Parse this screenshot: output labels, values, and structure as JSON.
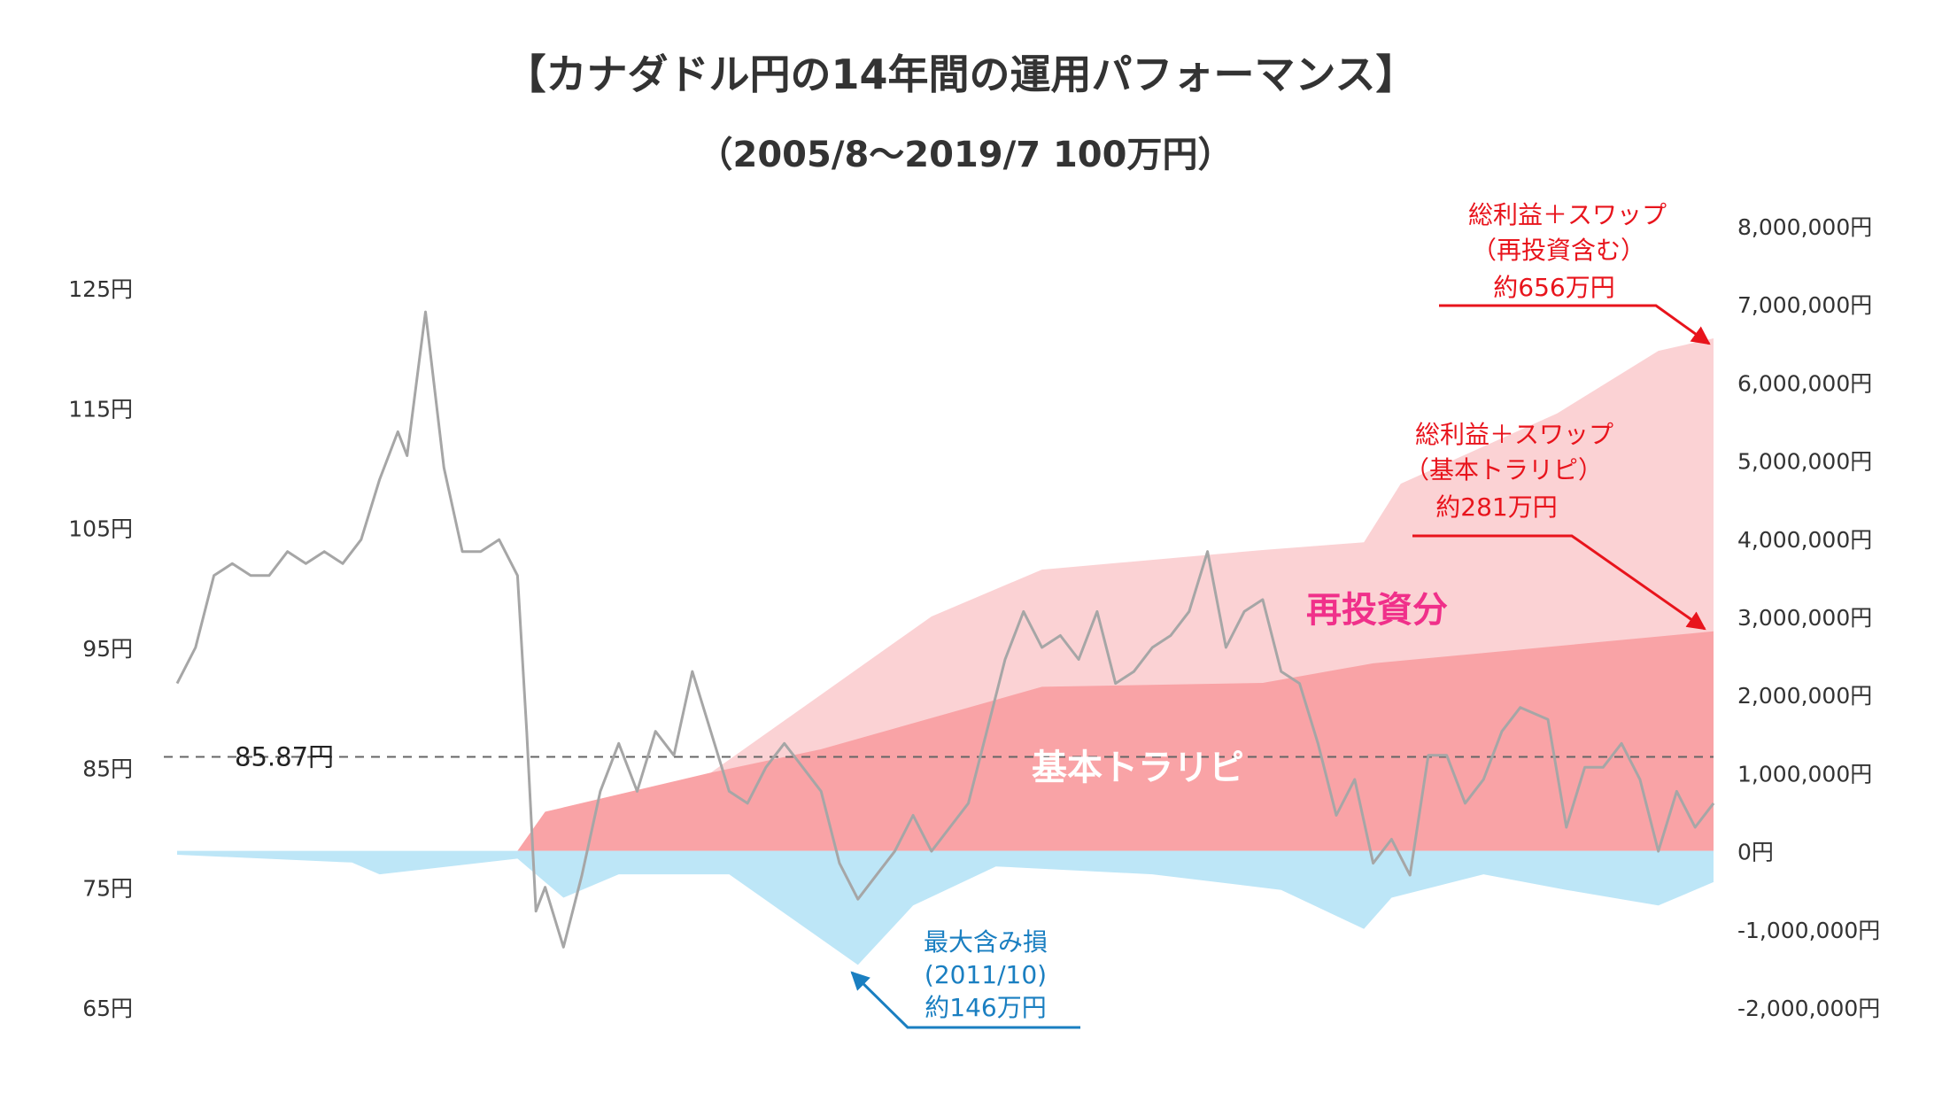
{
  "chart_data": {
    "type": "line",
    "title": "【カナダドル円の14年間の運用パフォーマンス】",
    "subtitle": "（2005/8〜2019/7 100万円）",
    "x_start": "2005/8",
    "x_end": "2019/7",
    "left_axis": {
      "ticks": [
        "125円",
        "115円",
        "105円",
        "95円",
        "85円",
        "75円",
        "65円"
      ],
      "values": [
        125,
        115,
        105,
        95,
        85,
        75,
        65
      ],
      "ylim": [
        65,
        125
      ]
    },
    "right_axis": {
      "ticks": [
        "8,000,000円",
        "7,000,000円",
        "6,000,000円",
        "5,000,000円",
        "4,000,000円",
        "3,000,000円",
        "2,000,000円",
        "1,000,000円",
        "0円",
        "-1,000,000円",
        "-2,000,000円"
      ],
      "values": [
        8000000,
        7000000,
        6000000,
        5000000,
        4000000,
        3000000,
        2000000,
        1000000,
        0,
        -1000000,
        -2000000
      ],
      "ylim": [
        -2000000,
        8000000
      ]
    },
    "reference_line": {
      "label": "85.87円",
      "value": 85.87
    },
    "series": [
      {
        "axis": "left",
        "color": "#a6a6a6",
        "points": [
          [
            "2005/8",
            92
          ],
          [
            "2005/10",
            95
          ],
          [
            "2005/12",
            101
          ],
          [
            "2006/2",
            102
          ],
          [
            "2006/4",
            101
          ],
          [
            "2006/6",
            101
          ],
          [
            "2006/8",
            103
          ],
          [
            "2006/10",
            102
          ],
          [
            "2006/12",
            103
          ],
          [
            "2007/2",
            102
          ],
          [
            "2007/4",
            104
          ],
          [
            "2007/6",
            109
          ],
          [
            "2007/8",
            113
          ],
          [
            "2007/9",
            111
          ],
          [
            "2007/11",
            123
          ],
          [
            "2008/1",
            110
          ],
          [
            "2008/3",
            103
          ],
          [
            "2008/5",
            103
          ],
          [
            "2008/7",
            104
          ],
          [
            "2008/9",
            101
          ],
          [
            "2008/10",
            88
          ],
          [
            "2008/11",
            73
          ],
          [
            "2008/12",
            75
          ],
          [
            "2009/2",
            70
          ],
          [
            "2009/4",
            76
          ],
          [
            "2009/6",
            83
          ],
          [
            "2009/8",
            87
          ],
          [
            "2009/10",
            83
          ],
          [
            "2009/12",
            88
          ],
          [
            "2010/2",
            86
          ],
          [
            "2010/4",
            93
          ],
          [
            "2010/6",
            88
          ],
          [
            "2010/8",
            83
          ],
          [
            "2010/10",
            82
          ],
          [
            "2010/12",
            85
          ],
          [
            "2011/2",
            87
          ],
          [
            "2011/4",
            85
          ],
          [
            "2011/6",
            83
          ],
          [
            "2011/8",
            77
          ],
          [
            "2011/10",
            74
          ],
          [
            "2011/12",
            76
          ],
          [
            "2012/2",
            78
          ],
          [
            "2012/4",
            81
          ],
          [
            "2012/6",
            78
          ],
          [
            "2012/8",
            80
          ],
          [
            "2012/10",
            82
          ],
          [
            "2012/12",
            88
          ],
          [
            "2013/2",
            94
          ],
          [
            "2013/4",
            98
          ],
          [
            "2013/6",
            95
          ],
          [
            "2013/8",
            96
          ],
          [
            "2013/10",
            94
          ],
          [
            "2013/12",
            98
          ],
          [
            "2014/2",
            92
          ],
          [
            "2014/4",
            93
          ],
          [
            "2014/6",
            95
          ],
          [
            "2014/8",
            96
          ],
          [
            "2014/10",
            98
          ],
          [
            "2014/12",
            103
          ],
          [
            "2015/2",
            95
          ],
          [
            "2015/4",
            98
          ],
          [
            "2015/6",
            99
          ],
          [
            "2015/8",
            93
          ],
          [
            "2015/10",
            92
          ],
          [
            "2015/12",
            87
          ],
          [
            "2016/2",
            81
          ],
          [
            "2016/4",
            84
          ],
          [
            "2016/6",
            77
          ],
          [
            "2016/8",
            79
          ],
          [
            "2016/10",
            76
          ],
          [
            "2016/12",
            86
          ],
          [
            "2017/2",
            86
          ],
          [
            "2017/4",
            82
          ],
          [
            "2017/6",
            84
          ],
          [
            "2017/8",
            88
          ],
          [
            "2017/10",
            90
          ],
          [
            "2018/1",
            89
          ],
          [
            "2018/3",
            80
          ],
          [
            "2018/5",
            85
          ],
          [
            "2018/7",
            85
          ],
          [
            "2018/9",
            87
          ],
          [
            "2018/11",
            84
          ],
          [
            "2019/1",
            78
          ],
          [
            "2019/3",
            83
          ],
          [
            "2019/5",
            80
          ],
          [
            "2019/7",
            82
          ]
        ]
      },
      {
        "name": "基本トラリピ",
        "axis": "right",
        "type": "area",
        "color": "#f9a3a6",
        "points": [
          [
            "2005/8",
            0
          ],
          [
            "2008/9",
            0
          ],
          [
            "2008/12",
            500000
          ],
          [
            "2010/6",
            1000000
          ],
          [
            "2011/6",
            1300000
          ],
          [
            "2013/6",
            2100000
          ],
          [
            "2015/6",
            2150000
          ],
          [
            "2016/6",
            2400000
          ],
          [
            "2019/7",
            2810000
          ]
        ]
      },
      {
        "name": "再投資分",
        "axis": "right",
        "type": "area",
        "color": "#fbd2d4",
        "points": [
          [
            "2005/8",
            0
          ],
          [
            "2008/9",
            0
          ],
          [
            "2008/12",
            500000
          ],
          [
            "2010/6",
            1000000
          ],
          [
            "2011/6",
            2000000
          ],
          [
            "2012/6",
            3000000
          ],
          [
            "2013/6",
            3600000
          ],
          [
            "2015/6",
            3850000
          ],
          [
            "2016/5",
            3950000
          ],
          [
            "2016/9",
            4700000
          ],
          [
            "2018/2",
            5600000
          ],
          [
            "2019/1",
            6400000
          ],
          [
            "2019/7",
            6560000
          ]
        ]
      },
      {
        "name": "含み損",
        "axis": "right",
        "type": "area",
        "color": "#bde6f7",
        "points": [
          [
            "2005/8",
            -50000
          ],
          [
            "2007/3",
            -150000
          ],
          [
            "2007/6",
            -300000
          ],
          [
            "2008/9",
            -100000
          ],
          [
            "2009/2",
            -600000
          ],
          [
            "2009/8",
            -300000
          ],
          [
            "2010/8",
            -300000
          ],
          [
            "2011/10",
            -1460000
          ],
          [
            "2012/4",
            -700000
          ],
          [
            "2013/1",
            -200000
          ],
          [
            "2014/6",
            -300000
          ],
          [
            "2015/8",
            -500000
          ],
          [
            "2016/5",
            -1000000
          ],
          [
            "2016/8",
            -600000
          ],
          [
            "2017/6",
            -300000
          ],
          [
            "2018/3",
            -500000
          ],
          [
            "2019/1",
            -700000
          ],
          [
            "2019/7",
            -400000
          ]
        ]
      }
    ],
    "annotations": [
      {
        "lines": [
          "総利益＋スワップ",
          "（再投資含む）",
          "約656万円"
        ],
        "color": "#e8141c",
        "points_to": [
          "2019/7",
          6560000
        ]
      },
      {
        "lines": [
          "総利益＋スワップ",
          "（基本トラリピ）",
          "約281万円"
        ],
        "color": "#e8141c",
        "points_to": [
          "2019/7",
          2810000
        ]
      },
      {
        "lines": [
          "最大含み損",
          "(2011/10)",
          "約146万円"
        ],
        "color": "#1a7fc1",
        "points_to": [
          "2011/10",
          -1460000
        ]
      }
    ],
    "area_labels": {
      "reinvest": "再投資分",
      "basic": "基本トラリピ"
    },
    "grid": false
  }
}
